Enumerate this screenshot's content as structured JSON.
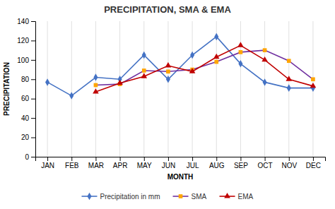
{
  "chart_data": {
    "type": "line",
    "title": "PRECIPITATION, SMA & EMA",
    "xlabel": "MONTH",
    "ylabel": "PRECIPITATION",
    "categories": [
      "JAN",
      "FEB",
      "MAR",
      "APR",
      "MAY",
      "JUN",
      "JUL",
      "AUG",
      "SEP",
      "OCT",
      "NOV",
      "DEC"
    ],
    "series": [
      {
        "name": "Precipitation in mm",
        "color": "#4472C4",
        "marker": "diamond",
        "line_style": "solid",
        "values": [
          77,
          63,
          82,
          80,
          105,
          80,
          105,
          124,
          96,
          77,
          71,
          71
        ]
      },
      {
        "name": "SMA",
        "color": "#7030A0",
        "marker": "square",
        "line_style": "solid",
        "colors": [
          "#FFA500",
          "#FFA500",
          "#FFA500",
          "#FFA500",
          "#FFA500",
          "#FFA500",
          "#FFA500",
          "#FFA500",
          "#FFA500",
          "#FFA500",
          "#FFA500",
          "#FFA500"
        ],
        "values": [
          null,
          null,
          74,
          75,
          89,
          88,
          90,
          98,
          108,
          110,
          99,
          80
        ]
      },
      {
        "name": "EMA",
        "color": "#C00000",
        "marker": "triangle",
        "line_style": "solid",
        "values": [
          null,
          null,
          67,
          76,
          83,
          94,
          88,
          103,
          115,
          100,
          80,
          73
        ]
      }
    ],
    "ylim": [
      0,
      140
    ],
    "yticks": [
      0,
      20,
      40,
      60,
      80,
      100,
      120,
      140
    ],
    "grid": "x",
    "legend": "bottom"
  }
}
